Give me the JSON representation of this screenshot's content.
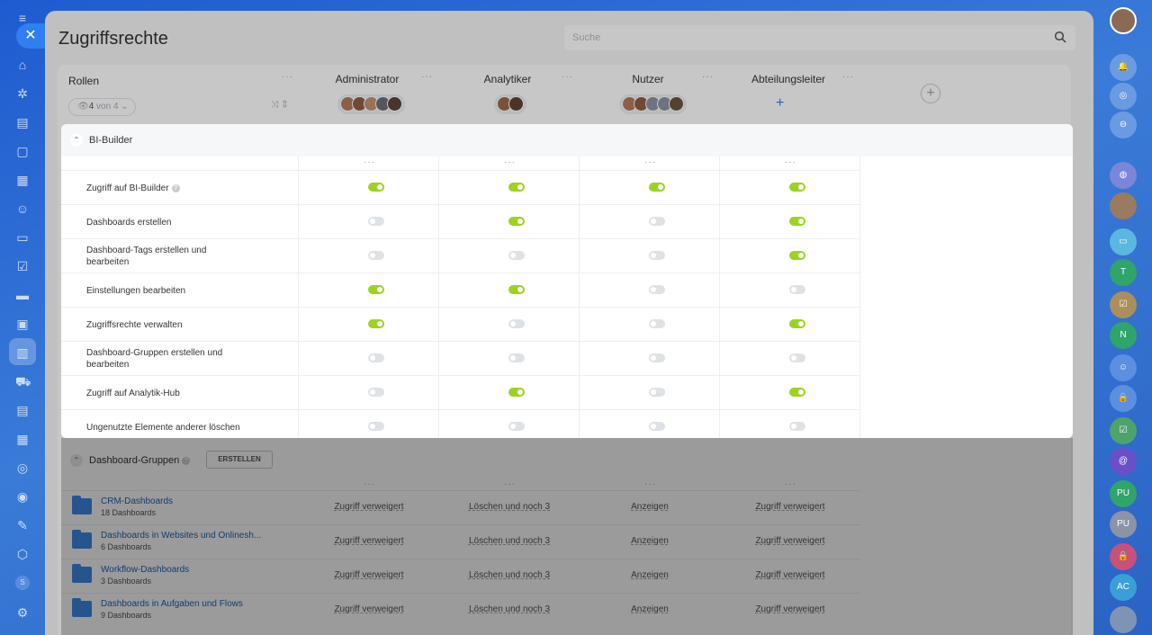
{
  "page": {
    "title": "Zugriffsrechte",
    "search_placeholder": "Suche"
  },
  "roles_header": {
    "label": "Rollen",
    "filter_count": "4",
    "filter_text": "von 4"
  },
  "columns": [
    "Administrator",
    "Analytiker",
    "Nutzer",
    "Abteilungsleiter"
  ],
  "bi_section": {
    "title": "BI-Builder",
    "rows": [
      {
        "label": "Zugriff auf BI-Builder",
        "help": true,
        "values": [
          true,
          true,
          true,
          true
        ]
      },
      {
        "label": "Dashboards erstellen",
        "values": [
          false,
          true,
          false,
          true
        ]
      },
      {
        "label": "Dashboard-Tags erstellen und bearbeiten",
        "values": [
          false,
          false,
          false,
          true
        ]
      },
      {
        "label": "Einstellungen bearbeiten",
        "values": [
          true,
          true,
          false,
          false
        ]
      },
      {
        "label": "Zugriffsrechte verwalten",
        "values": [
          true,
          false,
          false,
          true
        ]
      },
      {
        "label": "Dashboard-Gruppen erstellen und bearbeiten",
        "values": [
          false,
          false,
          false,
          false
        ]
      },
      {
        "label": "Zugriff auf Analytik-Hub",
        "values": [
          false,
          true,
          false,
          true
        ]
      },
      {
        "label": "Ungenutzte Elemente anderer löschen",
        "values": [
          false,
          false,
          false,
          false
        ]
      }
    ]
  },
  "groups_section": {
    "title": "Dashboard-Gruppen",
    "create_label": "ERSTELLEN",
    "rows": [
      {
        "name": "CRM-Dashboards",
        "sub": "18 Dashboards",
        "cells": [
          "Zugriff verweigert",
          "Löschen und noch 3",
          "Anzeigen",
          "Zugriff verweigert"
        ]
      },
      {
        "name": "Dashboards in Websites und Onlinesh...",
        "sub": "6 Dashboards",
        "cells": [
          "Zugriff verweigert",
          "Löschen und noch 3",
          "Anzeigen",
          "Zugriff verweigert"
        ]
      },
      {
        "name": "Workflow-Dashboards",
        "sub": "3 Dashboards",
        "cells": [
          "Zugriff verweigert",
          "Löschen und noch 3",
          "Anzeigen",
          "Zugriff verweigert"
        ]
      },
      {
        "name": "Dashboards in Aufgaben und Flows",
        "sub": "9 Dashboards",
        "cells": [
          "Zugriff verweigert",
          "Löschen und noch 3",
          "Anzeigen",
          "Zugriff verweigert"
        ]
      }
    ]
  },
  "right_sidebar": {
    "badges": [
      "T",
      "N",
      "PU",
      "PU",
      "AC"
    ]
  },
  "left_sidebar": {
    "badge": "S"
  },
  "colors": {
    "toggle_on": "#9bd321",
    "toggle_off": "#dfe2e5",
    "accent": "#2f7ff0",
    "link": "#2067b0"
  }
}
